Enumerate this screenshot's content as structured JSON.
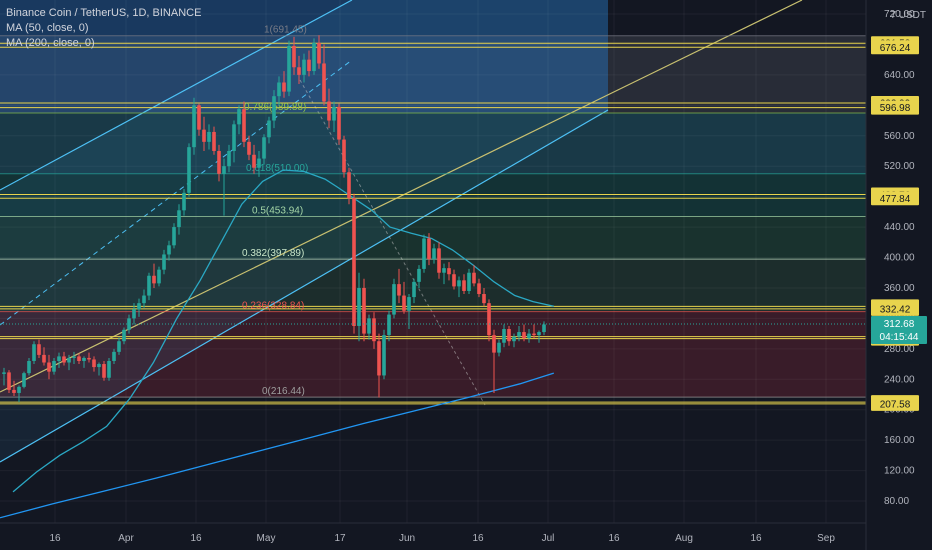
{
  "legend": {
    "symbol": "Binance Coin / TetherUS, 1D, BINANCE",
    "ma50": "MA (50, close, 0)",
    "ma200": "MA (200, close, 0)"
  },
  "currency": "7 USDT",
  "chart_data": {
    "type": "candlestick",
    "y_axis": {
      "scale": "linear",
      "ylim": [
        50,
        790
      ],
      "ticks": [
        "720.00",
        "680.00",
        "640.00",
        "600.00",
        "560.00",
        "520.00",
        "480.00",
        "440.00",
        "400.00",
        "360.00",
        "320.00",
        "280.00",
        "240.00",
        "200.00",
        "160.00",
        "120.00",
        "80.00"
      ]
    },
    "x_axis": {
      "ticks": [
        "16",
        "Apr",
        "16",
        "May",
        "17",
        "Jun",
        "16",
        "Jul",
        "16",
        "Aug",
        "16",
        "Sep"
      ]
    },
    "colors": {
      "up": "#26a69a",
      "down": "#ef5350",
      "ma50": "#2aa8c4",
      "ma200": "#2196f3",
      "hline": "#e8d44d",
      "trend": "#4fc3f7",
      "right_channel": "#c8c070"
    },
    "horizontal_levels": [
      {
        "label": "681.58",
        "value": 681.58
      },
      {
        "label": "676.24",
        "value": 676.24
      },
      {
        "label": "602.99",
        "value": 602.99
      },
      {
        "label": "596.98",
        "value": 596.98
      },
      {
        "label": "482.76",
        "value": 482.76
      },
      {
        "label": "477.84",
        "value": 477.84
      },
      {
        "label": "335.78",
        "value": 335.78
      },
      {
        "label": "332.42",
        "value": 332.42
      },
      {
        "label": "296.06",
        "value": 296.06
      },
      {
        "label": "293.37",
        "value": 293.37
      },
      {
        "label": "209.93",
        "value": 209.93
      },
      {
        "label": "207.58",
        "value": 207.58
      }
    ],
    "fib_levels": [
      {
        "label": "1(691.45)",
        "value": 691.45,
        "color": "#787b86"
      },
      {
        "label": "0.786(589.88)",
        "value": 589.88,
        "color": "#8bc34a"
      },
      {
        "label": "0.618(510.00)",
        "value": 510.0,
        "color": "#26a69a"
      },
      {
        "label": "0.5(453.94)",
        "value": 453.94,
        "color": "#a5d6a7"
      },
      {
        "label": "0.382(397.89)",
        "value": 397.89,
        "color": "#c8e6c9"
      },
      {
        "label": "0.236(328.84)",
        "value": 328.84,
        "color": "#ef5350"
      },
      {
        "label": "0(216.44)",
        "value": 216.44,
        "color": "#9e9e9e"
      }
    ],
    "current_price": {
      "value": 312.68,
      "label": "312.68",
      "countdown": "04:15:44"
    },
    "ma50": [
      [
        10,
        92
      ],
      [
        28,
        118
      ],
      [
        46,
        140
      ],
      [
        64,
        158
      ],
      [
        82,
        178
      ],
      [
        100,
        215
      ],
      [
        118,
        262
      ],
      [
        136,
        320
      ],
      [
        154,
        370
      ],
      [
        170,
        420
      ],
      [
        186,
        470
      ],
      [
        202,
        500
      ],
      [
        218,
        515
      ],
      [
        234,
        513
      ],
      [
        250,
        503
      ],
      [
        260,
        492
      ],
      [
        272,
        478
      ],
      [
        286,
        462
      ],
      [
        300,
        440
      ],
      [
        316,
        432
      ],
      [
        332,
        425
      ],
      [
        348,
        410
      ],
      [
        364,
        390
      ],
      [
        380,
        368
      ],
      [
        396,
        350
      ],
      [
        410,
        342
      ],
      [
        426,
        336
      ]
    ],
    "ma200": [
      [
        0,
        58
      ],
      [
        40,
        76
      ],
      [
        80,
        93
      ],
      [
        120,
        110
      ],
      [
        160,
        128
      ],
      [
        200,
        146
      ],
      [
        240,
        164
      ],
      [
        280,
        182
      ],
      [
        320,
        199
      ],
      [
        360,
        216
      ],
      [
        400,
        234
      ],
      [
        426,
        248
      ]
    ],
    "candles": [
      [
        0,
        247,
        255,
        232,
        249
      ],
      [
        1,
        249,
        252,
        222,
        226
      ],
      [
        2,
        226,
        238,
        218,
        222
      ],
      [
        3,
        222,
        232,
        210,
        230
      ],
      [
        4,
        230,
        250,
        228,
        248
      ],
      [
        5,
        248,
        268,
        245,
        264
      ],
      [
        6,
        264,
        290,
        260,
        286
      ],
      [
        7,
        286,
        292,
        268,
        272
      ],
      [
        8,
        272,
        282,
        258,
        262
      ],
      [
        9,
        262,
        272,
        240,
        250
      ],
      [
        10,
        250,
        268,
        246,
        264
      ],
      [
        11,
        264,
        275,
        255,
        270
      ],
      [
        12,
        270,
        276,
        258,
        262
      ],
      [
        13,
        262,
        272,
        252,
        268
      ],
      [
        14,
        268,
        276,
        260,
        270
      ],
      [
        15,
        270,
        274,
        260,
        264
      ],
      [
        16,
        264,
        270,
        255,
        268
      ],
      [
        17,
        268,
        275,
        262,
        266
      ],
      [
        18,
        266,
        270,
        250,
        256
      ],
      [
        19,
        256,
        262,
        245,
        260
      ],
      [
        20,
        260,
        264,
        238,
        242
      ],
      [
        21,
        242,
        268,
        238,
        264
      ],
      [
        22,
        264,
        280,
        260,
        276
      ],
      [
        23,
        276,
        295,
        272,
        290
      ],
      [
        24,
        290,
        308,
        286,
        305
      ],
      [
        25,
        305,
        325,
        300,
        320
      ],
      [
        26,
        320,
        340,
        312,
        332
      ],
      [
        27,
        332,
        346,
        322,
        340
      ],
      [
        28,
        340,
        358,
        334,
        350
      ],
      [
        29,
        350,
        380,
        344,
        376
      ],
      [
        30,
        376,
        392,
        360,
        366
      ],
      [
        31,
        366,
        388,
        362,
        384
      ],
      [
        32,
        384,
        410,
        378,
        404
      ],
      [
        33,
        404,
        422,
        396,
        416
      ],
      [
        34,
        416,
        445,
        412,
        440
      ],
      [
        35,
        440,
        470,
        430,
        462
      ],
      [
        36,
        462,
        490,
        455,
        485
      ],
      [
        37,
        485,
        550,
        480,
        545
      ],
      [
        38,
        545,
        610,
        535,
        600
      ],
      [
        39,
        600,
        602,
        560,
        568
      ],
      [
        40,
        568,
        585,
        540,
        552
      ],
      [
        41,
        552,
        575,
        542,
        565
      ],
      [
        42,
        565,
        572,
        535,
        540
      ],
      [
        43,
        540,
        548,
        500,
        510
      ],
      [
        44,
        510,
        530,
        455,
        520
      ],
      [
        45,
        520,
        548,
        512,
        540
      ],
      [
        46,
        540,
        580,
        525,
        575
      ],
      [
        47,
        575,
        600,
        562,
        595
      ],
      [
        48,
        595,
        605,
        545,
        552
      ],
      [
        49,
        552,
        560,
        528,
        535
      ],
      [
        50,
        535,
        548,
        510,
        518
      ],
      [
        51,
        518,
        540,
        506,
        530
      ],
      [
        52,
        530,
        562,
        522,
        558
      ],
      [
        53,
        558,
        585,
        550,
        580
      ],
      [
        54,
        580,
        620,
        570,
        612
      ],
      [
        55,
        612,
        638,
        600,
        630
      ],
      [
        56,
        630,
        645,
        610,
        618
      ],
      [
        57,
        618,
        685,
        612,
        678
      ],
      [
        58,
        678,
        690,
        640,
        650
      ],
      [
        59,
        650,
        665,
        628,
        640
      ],
      [
        60,
        640,
        668,
        630,
        660
      ],
      [
        61,
        660,
        672,
        638,
        645
      ],
      [
        62,
        645,
        688,
        640,
        682
      ],
      [
        63,
        682,
        692,
        648,
        655
      ],
      [
        64,
        655,
        680,
        600,
        605
      ],
      [
        65,
        605,
        622,
        570,
        580
      ],
      [
        66,
        580,
        605,
        565,
        598
      ],
      [
        67,
        598,
        602,
        548,
        555
      ],
      [
        68,
        555,
        560,
        505,
        512
      ],
      [
        69,
        512,
        518,
        470,
        478
      ],
      [
        70,
        478,
        484,
        300,
        310
      ],
      [
        71,
        310,
        380,
        290,
        360
      ],
      [
        72,
        360,
        372,
        290,
        300
      ],
      [
        73,
        300,
        325,
        292,
        320
      ],
      [
        74,
        320,
        328,
        280,
        290
      ],
      [
        75,
        290,
        300,
        216,
        245
      ],
      [
        76,
        245,
        305,
        240,
        298
      ],
      [
        77,
        298,
        330,
        290,
        325
      ],
      [
        78,
        325,
        372,
        320,
        365
      ],
      [
        79,
        365,
        385,
        340,
        350
      ],
      [
        80,
        350,
        368,
        326,
        330
      ],
      [
        81,
        330,
        352,
        306,
        348
      ],
      [
        82,
        348,
        372,
        340,
        368
      ],
      [
        83,
        368,
        390,
        360,
        385
      ],
      [
        84,
        385,
        430,
        380,
        425
      ],
      [
        85,
        425,
        432,
        390,
        398
      ],
      [
        86,
        398,
        418,
        392,
        412
      ],
      [
        87,
        412,
        420,
        372,
        380
      ],
      [
        88,
        380,
        392,
        365,
        386
      ],
      [
        89,
        386,
        394,
        370,
        378
      ],
      [
        90,
        378,
        384,
        358,
        362
      ],
      [
        91,
        362,
        375,
        348,
        370
      ],
      [
        92,
        370,
        378,
        352,
        356
      ],
      [
        93,
        356,
        385,
        352,
        380
      ],
      [
        94,
        380,
        390,
        362,
        366
      ],
      [
        95,
        366,
        372,
        348,
        352
      ],
      [
        96,
        352,
        360,
        336,
        340
      ],
      [
        97,
        340,
        345,
        290,
        298
      ],
      [
        98,
        298,
        305,
        222,
        275
      ],
      [
        99,
        275,
        292,
        270,
        288
      ],
      [
        100,
        288,
        312,
        282,
        306
      ],
      [
        101,
        306,
        310,
        284,
        290
      ],
      [
        102,
        290,
        300,
        282,
        296
      ],
      [
        103,
        296,
        310,
        290,
        302
      ],
      [
        104,
        302,
        312,
        290,
        294
      ],
      [
        105,
        294,
        306,
        288,
        300
      ],
      [
        106,
        300,
        312,
        294,
        298
      ],
      [
        107,
        298,
        304,
        288,
        302
      ],
      [
        108,
        302,
        316,
        298,
        312
      ]
    ]
  }
}
